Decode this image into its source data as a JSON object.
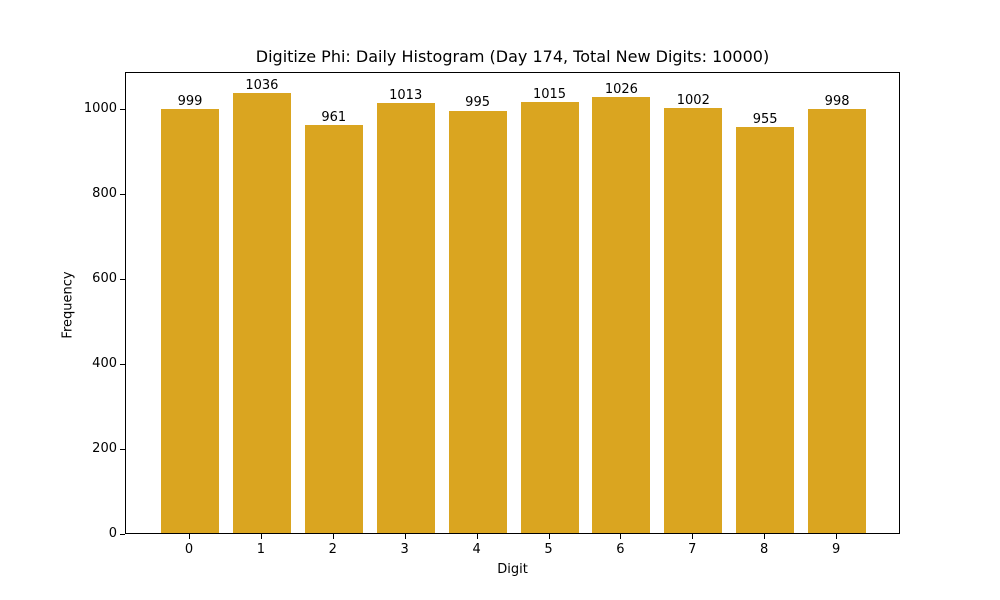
{
  "chart_data": {
    "type": "bar",
    "title": "Digitize Phi: Daily Histogram (Day 174, Total New Digits: 10000)",
    "xlabel": "Digit",
    "ylabel": "Frequency",
    "categories": [
      "0",
      "1",
      "2",
      "3",
      "4",
      "5",
      "6",
      "7",
      "8",
      "9"
    ],
    "values": [
      999,
      1036,
      961,
      1013,
      995,
      1015,
      1026,
      1002,
      955,
      998
    ],
    "bar_color": "#daa520",
    "ylim": [
      0,
      1088
    ],
    "yticks": [
      0,
      200,
      400,
      600,
      800,
      1000
    ],
    "grid": false,
    "legend": null
  }
}
